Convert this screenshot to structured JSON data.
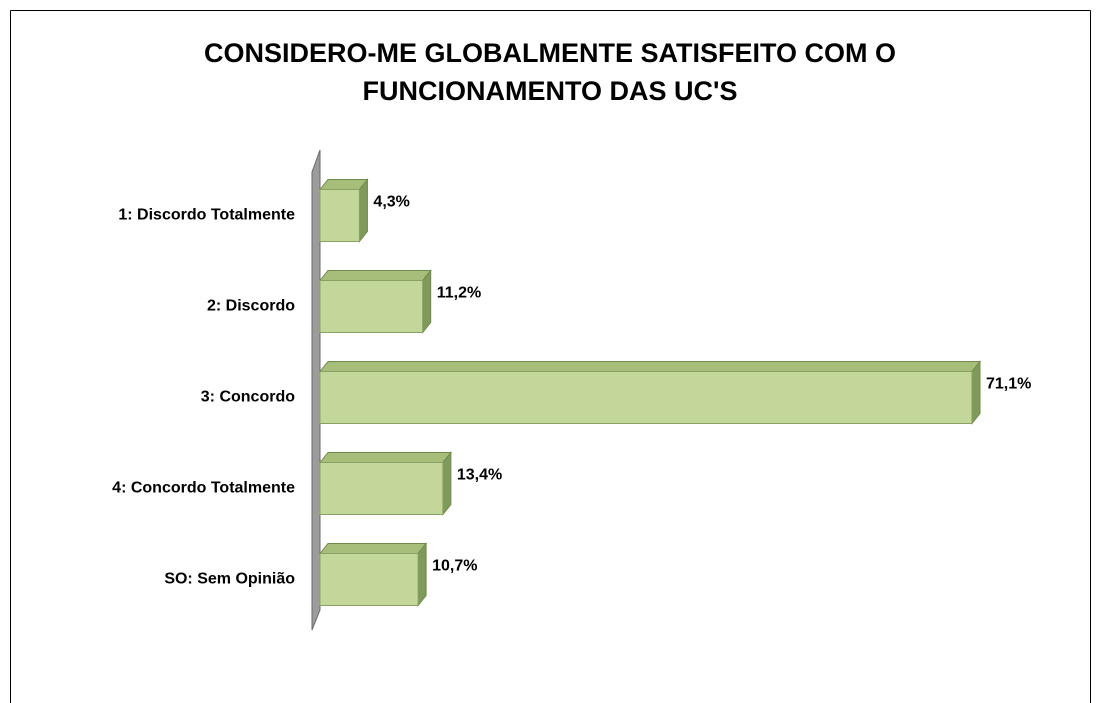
{
  "chart_data": {
    "type": "bar3d-horizontal",
    "title": "CONSIDERO-ME GLOBALMENTE SATISFEITO COM O FUNCIONAMENTO DAS UC'S",
    "categories": [
      "1: Discordo Totalmente",
      "2: Discordo",
      "3: Concordo",
      "4: Concordo Totalmente",
      "SO: Sem Opinião"
    ],
    "values": [
      4.3,
      11.2,
      71.1,
      13.4,
      10.7
    ],
    "value_labels": [
      "4,3%",
      "11,2%",
      "71,1%",
      "13,4%",
      "10,7%"
    ],
    "color": "#c4d79b"
  }
}
